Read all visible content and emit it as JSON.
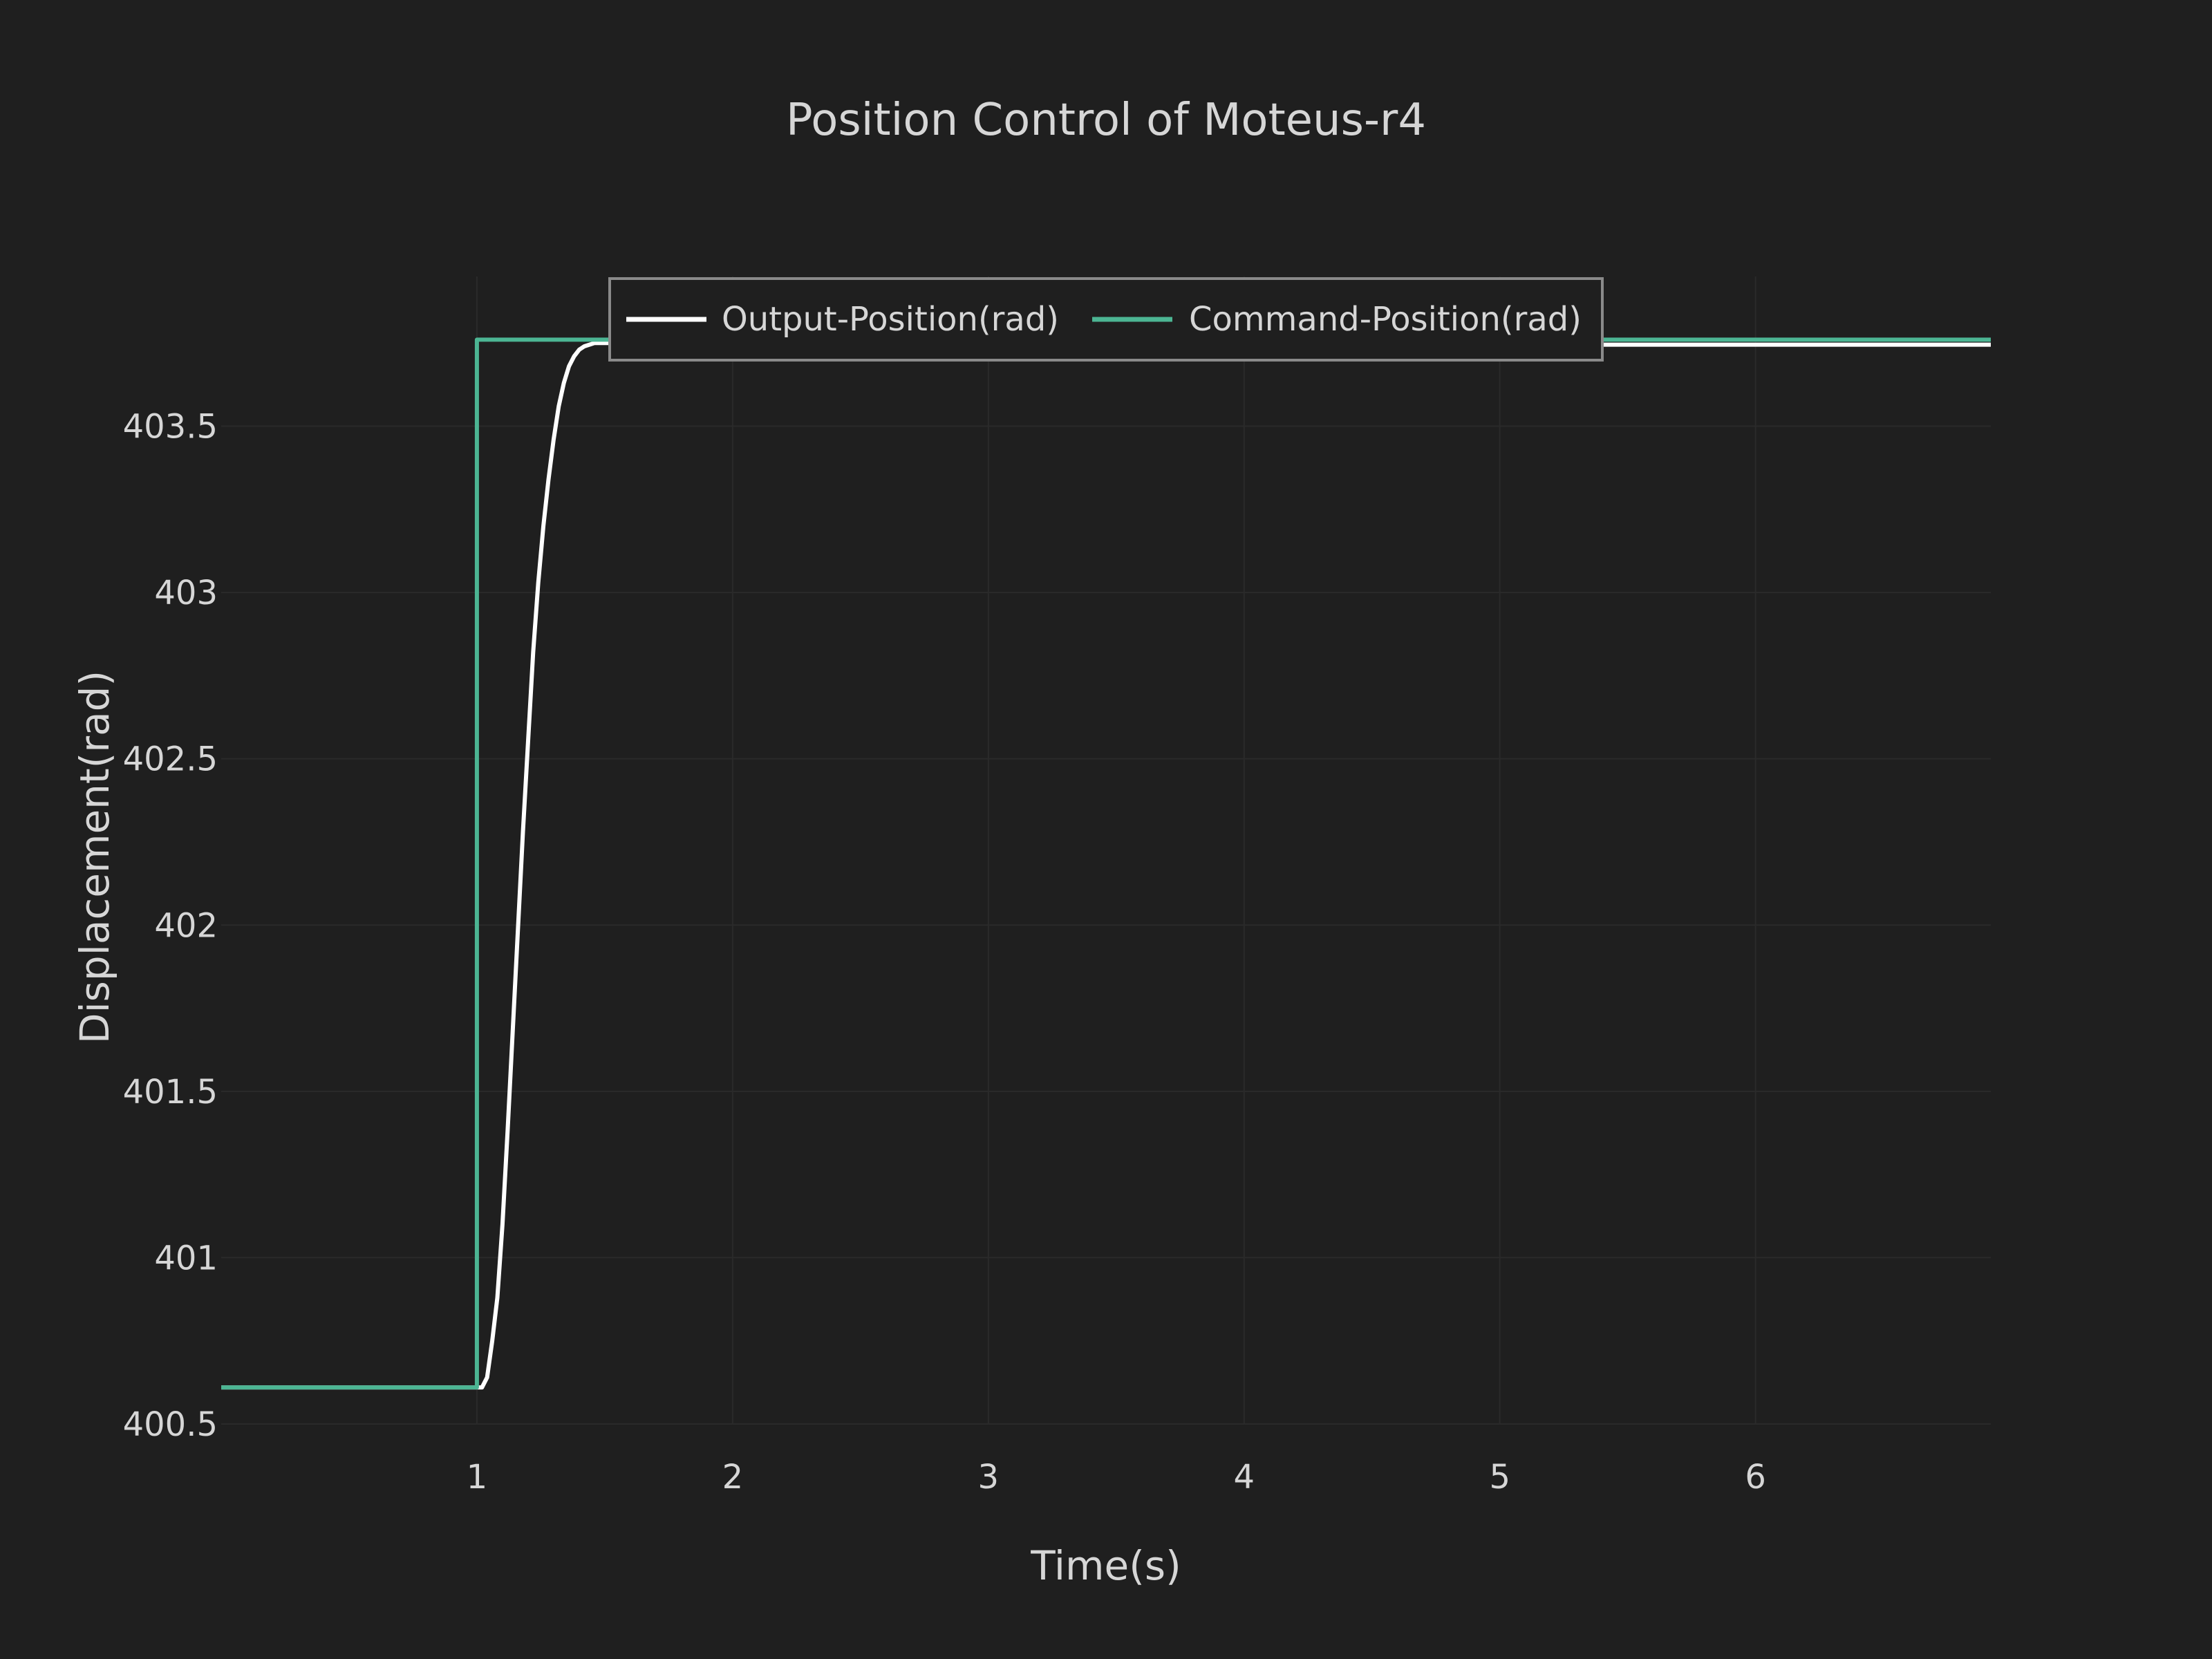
{
  "chart_data": {
    "type": "line",
    "title": "Position Control of Moteus-r4",
    "xlabel": "Time(s)",
    "ylabel": "Displacement(rad)",
    "xlim": [
      0.0,
      6.92
    ],
    "ylim": [
      400.5,
      403.95
    ],
    "xticks": [
      1,
      2,
      3,
      4,
      5,
      6
    ],
    "xtick_labels": [
      "1",
      "2",
      "3",
      "4",
      "5",
      "6"
    ],
    "yticks": [
      400.5,
      401,
      401.5,
      402,
      402.5,
      403,
      403.5
    ],
    "ytick_labels": [
      "400.5",
      "401",
      "401.5",
      "402",
      "402.5",
      "403",
      "403.5"
    ],
    "grid": true,
    "legend_position": "top-center",
    "series": [
      {
        "name": "Output-Position(rad)",
        "color": "#ffffff",
        "x": [
          0.0,
          0.5,
          1.0,
          1.02,
          1.04,
          1.06,
          1.08,
          1.1,
          1.12,
          1.14,
          1.16,
          1.18,
          1.2,
          1.22,
          1.24,
          1.26,
          1.28,
          1.3,
          1.32,
          1.34,
          1.36,
          1.38,
          1.4,
          1.42,
          1.44,
          1.46,
          1.48,
          1.5,
          1.55,
          1.6,
          1.7,
          1.8,
          2.0,
          3.0,
          4.0,
          5.0,
          6.0,
          6.92
        ],
        "y": [
          400.61,
          400.61,
          400.61,
          400.61,
          400.64,
          400.75,
          400.88,
          401.1,
          401.38,
          401.68,
          401.98,
          402.28,
          402.55,
          402.82,
          403.03,
          403.2,
          403.34,
          403.46,
          403.56,
          403.63,
          403.68,
          403.71,
          403.73,
          403.74,
          403.745,
          403.75,
          403.75,
          403.75,
          403.75,
          403.75,
          403.75,
          403.75,
          403.745,
          403.745,
          403.745,
          403.745,
          403.745,
          403.745
        ]
      },
      {
        "name": "Command-Position(rad)",
        "color": "#4cb593",
        "x": [
          0.0,
          1.0,
          1.0,
          6.92
        ],
        "y": [
          400.61,
          400.61,
          403.76,
          403.76
        ]
      }
    ]
  }
}
